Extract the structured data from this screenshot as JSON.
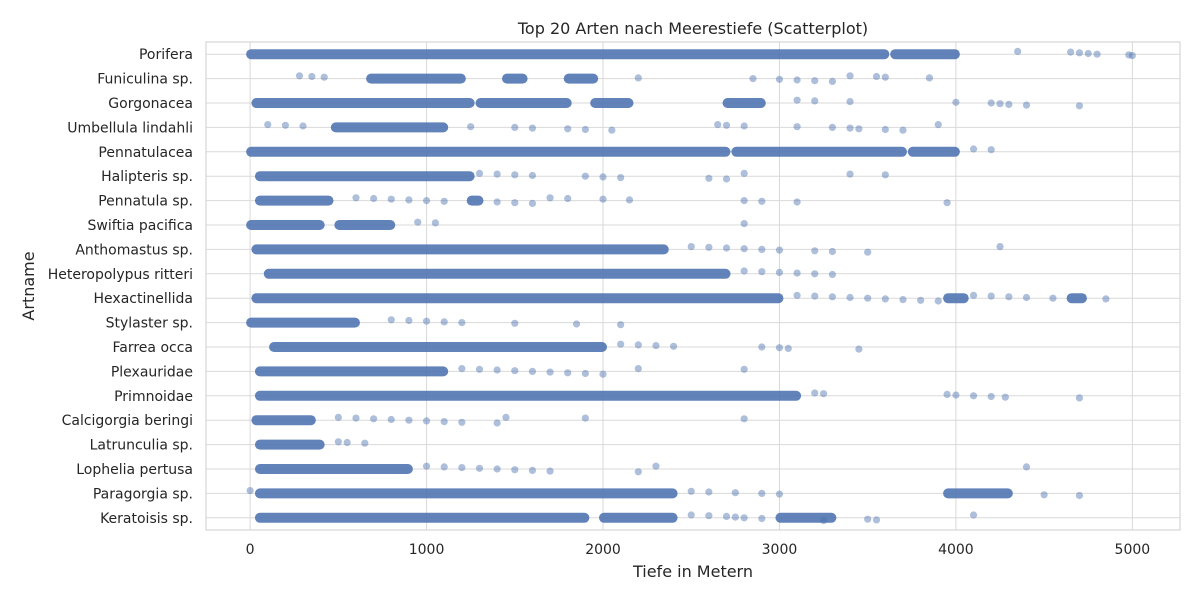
{
  "chart_data": {
    "type": "scatter",
    "title": "Top 20 Arten nach Meerestiefe (Scatterplot)",
    "xlabel": "Tiefe in Metern",
    "ylabel": "Artname",
    "xlim": [
      -250,
      5270
    ],
    "xticks": [
      0,
      1000,
      2000,
      3000,
      4000,
      5000
    ],
    "grid": true,
    "point_color": "#4c72b0",
    "categories": [
      "Porifera",
      "Funiculina sp.",
      "Gorgonacea",
      "Umbellula lindahli",
      "Pennatulacea",
      "Halipteris sp.",
      "Pennatula sp.",
      "Swiftia pacifica",
      "Anthomastus sp.",
      "Heteropolypus ritteri",
      "Hexactinellida",
      "Stylaster sp.",
      "Farrea occa",
      "Plexauridae",
      "Primnoidae",
      "Calcigorgia beringi",
      "Latrunculia sp.",
      "Lophelia pertusa",
      "Paragorgia sp.",
      "Keratoisis sp."
    ],
    "dense_ranges": [
      [
        [
          0,
          3600
        ],
        [
          3650,
          4000
        ]
      ],
      [
        [
          680,
          1200
        ],
        [
          1450,
          1550
        ],
        [
          1800,
          1950
        ]
      ],
      [
        [
          30,
          1250
        ],
        [
          1300,
          1800
        ],
        [
          1950,
          2150
        ],
        [
          2700,
          2900
        ]
      ],
      [
        [
          480,
          1100
        ]
      ],
      [
        [
          0,
          2700
        ],
        [
          2750,
          3700
        ],
        [
          3750,
          4000
        ]
      ],
      [
        [
          50,
          1250
        ]
      ],
      [
        [
          50,
          450
        ],
        [
          1250,
          1300
        ]
      ],
      [
        [
          0,
          400
        ],
        [
          500,
          800
        ]
      ],
      [
        [
          30,
          2350
        ]
      ],
      [
        [
          100,
          2700
        ]
      ],
      [
        [
          30,
          3000
        ],
        [
          3950,
          4050
        ],
        [
          4650,
          4720
        ]
      ],
      [
        [
          0,
          600
        ]
      ],
      [
        [
          130,
          2000
        ]
      ],
      [
        [
          50,
          1100
        ]
      ],
      [
        [
          50,
          3100
        ]
      ],
      [
        [
          30,
          350
        ]
      ],
      [
        [
          50,
          400
        ]
      ],
      [
        [
          50,
          900
        ]
      ],
      [
        [
          50,
          2400
        ],
        [
          3950,
          4300
        ]
      ],
      [
        [
          50,
          1900
        ],
        [
          2000,
          2400
        ],
        [
          3000,
          3300
        ]
      ]
    ],
    "points": [
      [
        4350,
        4650,
        4700,
        4750,
        4800,
        4980,
        5000
      ],
      [
        280,
        350,
        420,
        2200,
        2850,
        3000,
        3100,
        3200,
        3300,
        3400,
        3550,
        3600,
        3850
      ],
      [
        3100,
        3200,
        3400,
        4000,
        4200,
        4250,
        4300,
        4400,
        4700
      ],
      [
        100,
        200,
        300,
        1250,
        1500,
        1600,
        1800,
        1900,
        2050,
        2650,
        2700,
        2800,
        3100,
        3300,
        3400,
        3450,
        3600,
        3700,
        3900
      ],
      [
        4100,
        4200
      ],
      [
        1300,
        1400,
        1500,
        1600,
        1900,
        2000,
        2100,
        2600,
        2700,
        2800,
        3400,
        3600
      ],
      [
        600,
        700,
        800,
        900,
        1000,
        1100,
        1400,
        1500,
        1600,
        1700,
        1800,
        2000,
        2150,
        2800,
        2900,
        3100,
        3950
      ],
      [
        950,
        1050,
        2800
      ],
      [
        2500,
        2600,
        2700,
        2800,
        2900,
        3000,
        3200,
        3300,
        3500,
        4250
      ],
      [
        2800,
        2900,
        3000,
        3100,
        3200,
        3300
      ],
      [
        3100,
        3200,
        3300,
        3400,
        3500,
        3600,
        3700,
        3800,
        3900,
        4100,
        4200,
        4300,
        4400,
        4550,
        4850
      ],
      [
        800,
        900,
        1000,
        1100,
        1200,
        1500,
        1850,
        2100
      ],
      [
        2100,
        2200,
        2300,
        2400,
        2900,
        3000,
        3050,
        3450
      ],
      [
        1200,
        1300,
        1400,
        1500,
        1600,
        1700,
        1800,
        1900,
        2000,
        2200,
        2800
      ],
      [
        3200,
        3250,
        3950,
        4000,
        4100,
        4200,
        4280,
        4700
      ],
      [
        500,
        600,
        700,
        800,
        900,
        1000,
        1100,
        1200,
        1400,
        1450,
        1900,
        2800
      ],
      [
        500,
        550,
        650
      ],
      [
        1000,
        1100,
        1200,
        1300,
        1400,
        1500,
        1600,
        1700,
        2200,
        2300,
        4400
      ],
      [
        0,
        2500,
        2600,
        2750,
        2900,
        3000,
        4500,
        4700
      ],
      [
        2500,
        2600,
        2700,
        2750,
        2800,
        2900,
        3500,
        3550,
        3250,
        4100
      ]
    ]
  }
}
